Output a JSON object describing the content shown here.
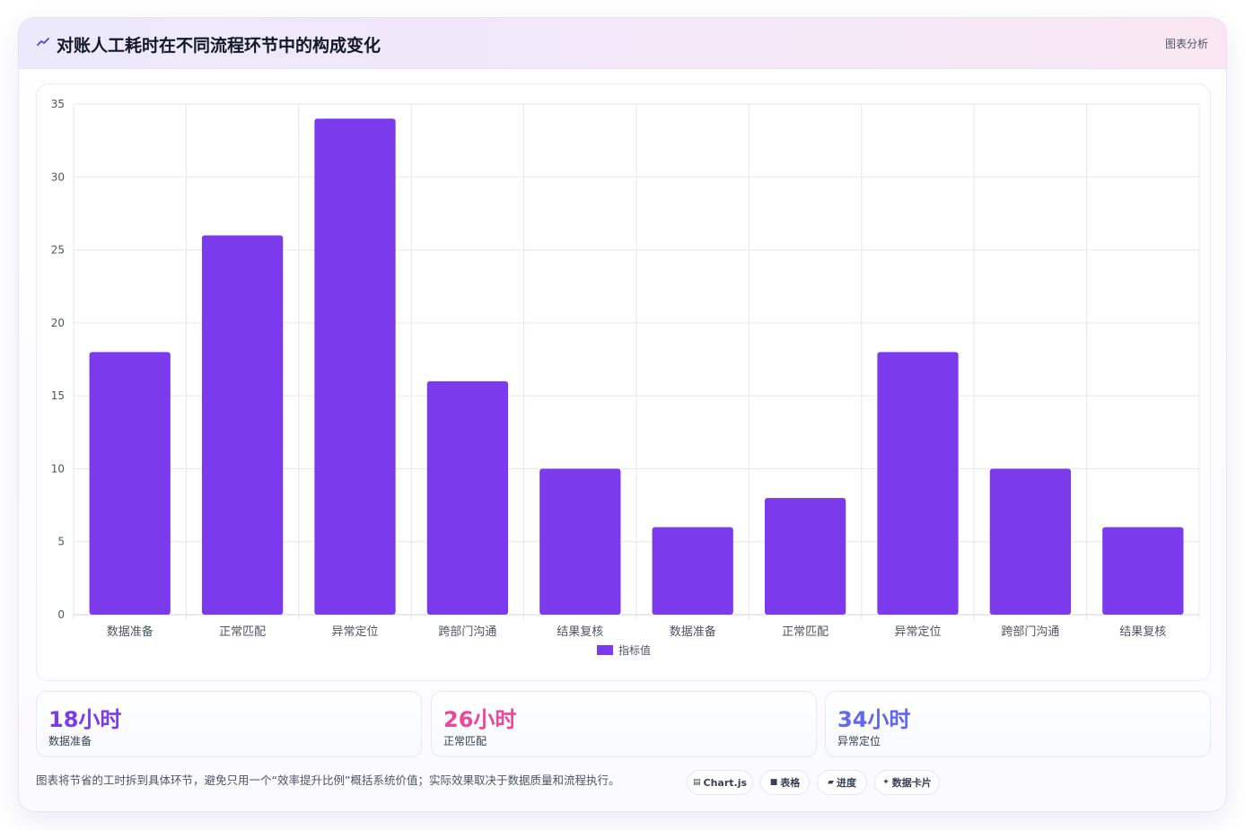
{
  "header": {
    "title": "对账人工耗时在不同流程环节中的构成变化",
    "tag": "图表分析",
    "icon": "trend-line-icon"
  },
  "colors": {
    "bar": "#7c3aed",
    "stat1": "#7c3aed",
    "stat2": "#ec4899",
    "stat3": "#6366f1",
    "grid": "#e5e7eb",
    "tick_text": "#4b5563"
  },
  "chart_data": {
    "type": "bar",
    "categories": [
      "数据准备",
      "正常匹配",
      "异常定位",
      "跨部门沟通",
      "结果复核",
      "数据准备",
      "正常匹配",
      "异常定位",
      "跨部门沟通",
      "结果复核"
    ],
    "series": [
      {
        "name": "指标值",
        "values": [
          18,
          26,
          34,
          16,
          10,
          6,
          8,
          18,
          10,
          6
        ]
      }
    ],
    "yticks": [
      0,
      5,
      10,
      15,
      20,
      25,
      30,
      35
    ],
    "ylim": [
      0,
      35
    ],
    "grid": true,
    "legend": "bottom-center"
  },
  "stats": [
    {
      "value": "18小时",
      "label": "数据准备"
    },
    {
      "value": "26小时",
      "label": "正常匹配"
    },
    {
      "value": "34小时",
      "label": "异常定位"
    }
  ],
  "footer": {
    "note": "图表将节省的工时拆到具体环节，避免只用一个“效率提升比例”概括系统价值；实际效果取决于数据质量和流程执行。",
    "pills": [
      {
        "icon": "▤",
        "icon_name": "chart-icon",
        "label": "Chart.js"
      },
      {
        "icon": "■",
        "icon_name": "table-icon",
        "label": "表格"
      },
      {
        "icon": "▰",
        "icon_name": "progress-icon",
        "label": "进度"
      },
      {
        "icon": "✦",
        "icon_name": "sparkle-icon",
        "label": "数据卡片"
      }
    ]
  }
}
